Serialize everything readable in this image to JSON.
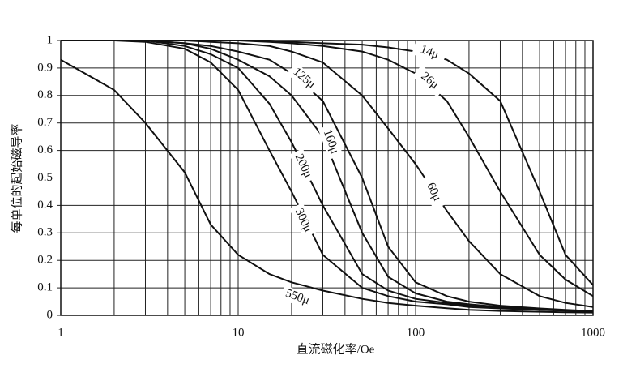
{
  "chart_data": {
    "type": "line",
    "x_label": "直流磁化率/Oe",
    "y_label": "每单位的起始磁导率",
    "log_x": true,
    "grid": true,
    "xlim": [
      1,
      1000
    ],
    "ylim": [
      0,
      1
    ],
    "xticks": [
      1,
      10,
      100,
      1000
    ],
    "xminorticks": [
      2,
      3,
      4,
      5,
      6,
      7,
      8,
      9,
      20,
      30,
      40,
      50,
      60,
      70,
      80,
      90,
      200,
      300,
      400,
      500,
      600,
      700,
      800,
      900
    ],
    "yticks": [
      0,
      0.1,
      0.2,
      0.3,
      0.4,
      0.5,
      0.6,
      0.7,
      0.8,
      0.9,
      1
    ],
    "x": [
      1,
      2,
      3,
      5,
      7,
      10,
      15,
      20,
      30,
      50,
      70,
      100,
      150,
      200,
      300,
      500,
      700,
      1000
    ],
    "series": [
      {
        "name": "14μ",
        "color": "#111111",
        "values": [
          1,
          1,
          1,
          1,
          1,
          1,
          1,
          0.995,
          0.99,
          0.985,
          0.975,
          0.96,
          0.93,
          0.88,
          0.78,
          0.45,
          0.22,
          0.11
        ]
      },
      {
        "name": "26μ",
        "color": "#111111",
        "values": [
          1,
          1,
          1,
          1,
          1,
          1,
          0.995,
          0.99,
          0.98,
          0.96,
          0.93,
          0.88,
          0.78,
          0.65,
          0.45,
          0.22,
          0.13,
          0.07
        ]
      },
      {
        "name": "60μ",
        "color": "#111111",
        "values": [
          1,
          1,
          1,
          1,
          0.995,
          0.99,
          0.98,
          0.96,
          0.92,
          0.8,
          0.68,
          0.55,
          0.38,
          0.27,
          0.15,
          0.07,
          0.045,
          0.03
        ]
      },
      {
        "name": "125μ",
        "color": "#111111",
        "values": [
          1,
          1,
          1,
          0.99,
          0.98,
          0.96,
          0.93,
          0.88,
          0.78,
          0.5,
          0.25,
          0.12,
          0.07,
          0.05,
          0.035,
          0.025,
          0.02,
          0.015
        ]
      },
      {
        "name": "160μ",
        "color": "#111111",
        "values": [
          1,
          1,
          1,
          0.99,
          0.97,
          0.93,
          0.87,
          0.8,
          0.65,
          0.3,
          0.14,
          0.08,
          0.05,
          0.04,
          0.03,
          0.022,
          0.018,
          0.015
        ]
      },
      {
        "name": "200μ",
        "color": "#111111",
        "values": [
          1,
          1,
          1,
          0.98,
          0.95,
          0.9,
          0.77,
          0.63,
          0.4,
          0.15,
          0.09,
          0.06,
          0.045,
          0.035,
          0.028,
          0.02,
          0.017,
          0.014
        ]
      },
      {
        "name": "300μ",
        "color": "#111111",
        "values": [
          1,
          1,
          0.995,
          0.97,
          0.92,
          0.82,
          0.6,
          0.45,
          0.22,
          0.1,
          0.07,
          0.05,
          0.04,
          0.03,
          0.025,
          0.02,
          0.017,
          0.015
        ]
      },
      {
        "name": "550μ",
        "color": "#111111",
        "values": [
          0.93,
          0.82,
          0.7,
          0.52,
          0.33,
          0.22,
          0.15,
          0.12,
          0.09,
          0.06,
          0.045,
          0.035,
          0.026,
          0.02,
          0.016,
          0.013,
          0.011,
          0.01
        ]
      }
    ]
  }
}
